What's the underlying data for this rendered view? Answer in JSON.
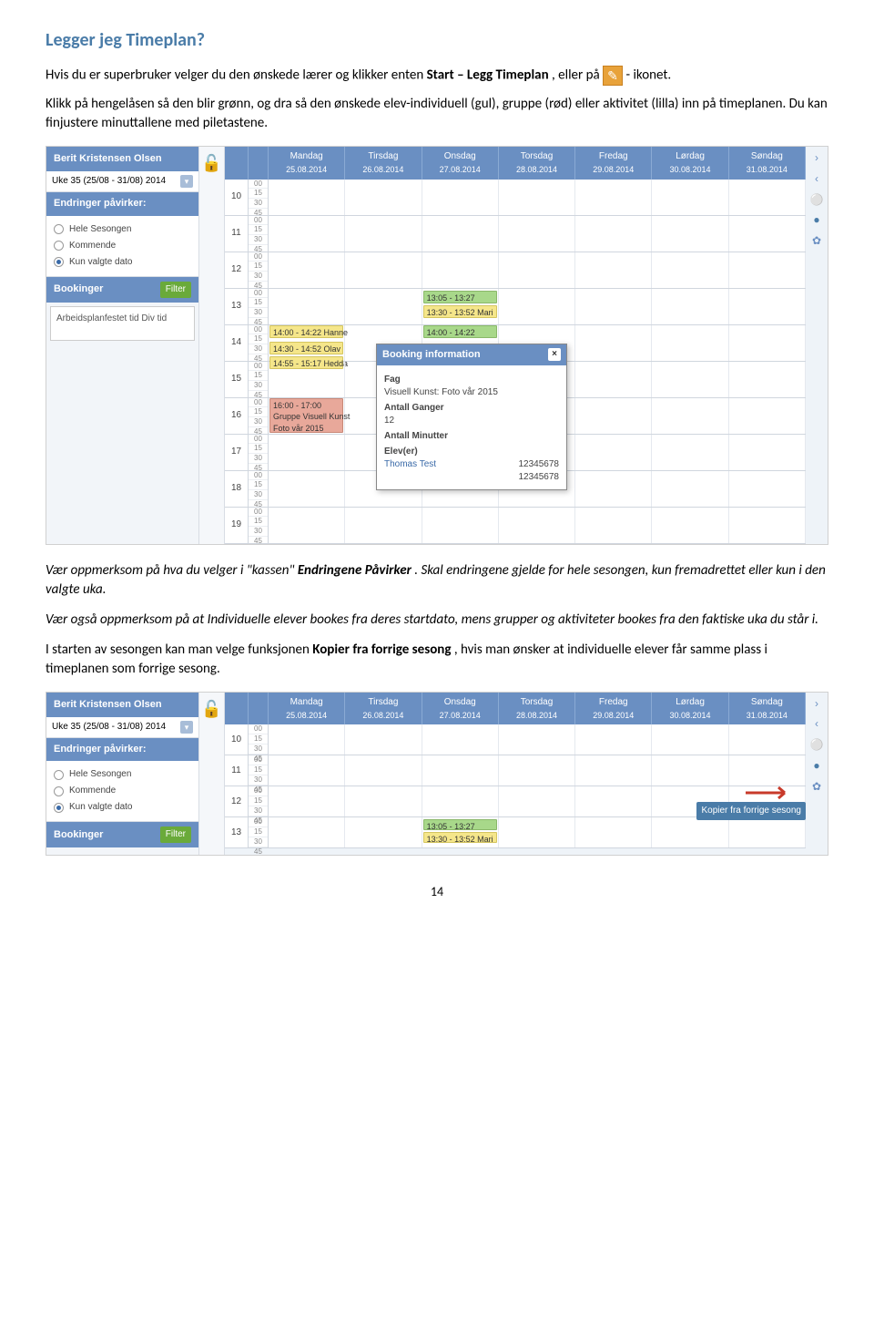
{
  "doc": {
    "title": "Legger jeg Timeplan?",
    "p1_a": "Hvis du er superbruker velger du den ønskede lærer og klikker enten ",
    "p1_b": "Start – Legg Timeplan",
    "p1_c": ", eller på",
    "p1_d": "- ikonet.",
    "p2": "Klikk på hengelåsen så den blir grønn, og dra så den ønskede elev-individuell (gul), gruppe (rød) eller aktivitet (lilla) inn på timeplanen. Du kan finjustere minuttallene med piletastene.",
    "p3_a": "Vær oppmerksom på hva du velger i \"kassen\" ",
    "p3_b": "Endringene Påvirker",
    "p3_c": ". Skal endringene gjelde for hele sesongen, kun fremadrettet eller kun i den valgte uka.",
    "p4": "Vær også oppmerksom på at Individuelle elever bookes fra deres startdato, mens grupper og aktiviteter bookes fra den faktiske uka du står i.",
    "p5_a": "I starten av sesongen kan man velge funksjonen ",
    "p5_b": "Kopier fra forrige sesong",
    "p5_c": ", hvis man ønsker at individuelle elever får samme plass i timeplanen som forrige sesong.",
    "page_num": "14"
  },
  "sidebar": {
    "user": "Berit Kristensen Olsen",
    "week": "Uke 35 (25/08 - 31/08) 2014",
    "endringer_hdr": "Endringer påvirker:",
    "radios": [
      "Hele Sesongen",
      "Kommende",
      "Kun valgte dato"
    ],
    "bookinger_hdr": "Bookinger",
    "filter_btn": "Filter",
    "booking_text": "Arbeidsplanfestet tid Div tid"
  },
  "cal": {
    "days": [
      {
        "name": "Mandag",
        "date": "25.08.2014"
      },
      {
        "name": "Tirsdag",
        "date": "26.08.2014"
      },
      {
        "name": "Onsdag",
        "date": "27.08.2014"
      },
      {
        "name": "Torsdag",
        "date": "28.08.2014"
      },
      {
        "name": "Fredag",
        "date": "29.08.2014"
      },
      {
        "name": "Lørdag",
        "date": "30.08.2014"
      },
      {
        "name": "Søndag",
        "date": "31.08.2014"
      }
    ],
    "hours": [
      "10",
      "11",
      "12",
      "13",
      "14",
      "15",
      "16",
      "17",
      "18",
      "19"
    ],
    "hours2": [
      "10",
      "11",
      "12",
      "13"
    ],
    "mins": [
      "00",
      "15",
      "30",
      "45"
    ],
    "events": {
      "e1": "13:05 - 13:27",
      "e2": "13:30 - 13:52 Mari",
      "e3": "14:00 - 14:22 Hanne",
      "e4": "14:30 - 14:52 Olav",
      "e5": "14:55 - 15:17 Hedda",
      "e6": "14:00 - 14:22",
      "e7a": "16:00 - 17:00",
      "e7b": "Gruppe Visuell Kunst",
      "e7c": "Foto vår 2015"
    }
  },
  "popup": {
    "title": "Booking information",
    "fag_lbl": "Fag",
    "fag_val": "Visuell Kunst: Foto vår 2015",
    "ganger_lbl": "Antall Ganger",
    "ganger_val": "12",
    "min_lbl": "Antall Minutter",
    "elev_lbl": "Elev(er)",
    "elev_name": "Thomas Test",
    "num1": "12345678",
    "num2": "12345678"
  },
  "tooltip": {
    "kopi": "Kopier fra forrige sesong"
  },
  "colors": {
    "header_blue": "#6a8fc2",
    "accent_blue": "#4a7ca8",
    "green_btn": "#6aaa3a",
    "ev_yellow": "#f5e68a",
    "ev_green": "#a8d88a",
    "ev_red": "#e8a89a"
  }
}
